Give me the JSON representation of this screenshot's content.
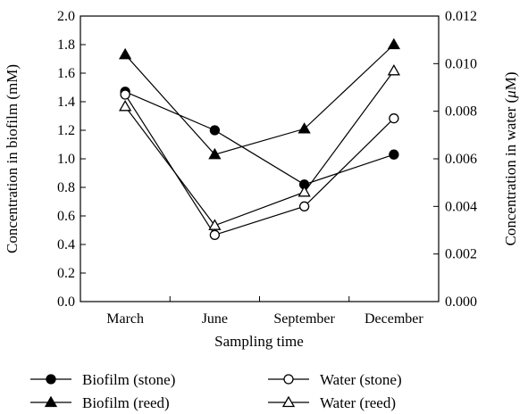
{
  "chart_data": {
    "type": "line",
    "categories": [
      "March",
      "June",
      "September",
      "December"
    ],
    "xlabel": "Sampling time",
    "ylabel_left": "Concentration in biofilm (mM)",
    "ylabel_right": "Concentration in water (",
    "ylabel_right_unit_symbol": "μ",
    "ylabel_right_unit_suffix": "M)",
    "ylim_left": [
      0.0,
      2.0
    ],
    "ylim_right": [
      0.0,
      0.012
    ],
    "yticks_left": [
      "0.0",
      "0.2",
      "0.4",
      "0.6",
      "0.8",
      "1.0",
      "1.2",
      "1.4",
      "1.6",
      "1.8",
      "2.0"
    ],
    "yticks_right": [
      "0.000",
      "0.002",
      "0.004",
      "0.006",
      "0.008",
      "0.010",
      "0.012"
    ],
    "grid": false,
    "legend_position": "bottom",
    "series": [
      {
        "name": "Biofilm (stone)",
        "axis": "left",
        "marker": "circle-filled",
        "values": [
          1.47,
          1.2,
          0.82,
          1.03
        ]
      },
      {
        "name": "Water (stone)",
        "axis": "right",
        "marker": "circle-open",
        "values": [
          0.0087,
          0.0028,
          0.004,
          0.0077
        ]
      },
      {
        "name": "Biofilm (reed)",
        "axis": "left",
        "marker": "triangle-filled",
        "values": [
          1.73,
          1.03,
          1.21,
          1.8
        ]
      },
      {
        "name": "Water (reed)",
        "axis": "right",
        "marker": "triangle-open",
        "values": [
          0.0082,
          0.0032,
          0.0046,
          0.0097
        ]
      }
    ]
  }
}
